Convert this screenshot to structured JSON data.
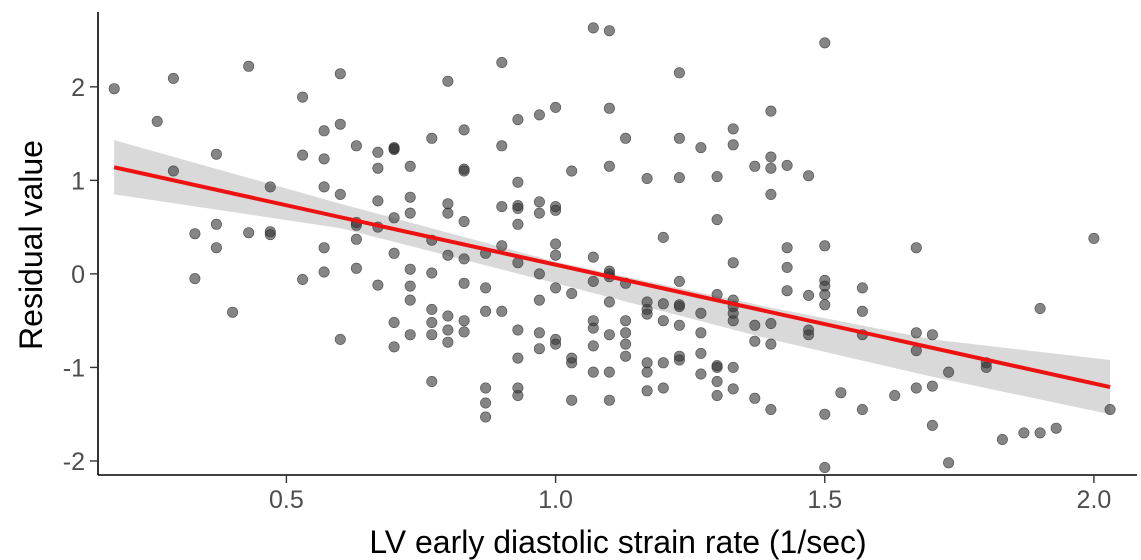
{
  "chart_data": {
    "type": "scatter",
    "title": "",
    "xlabel": "LV early diastolic strain rate (1/sec)",
    "ylabel": "Residual value",
    "xlim": [
      0.15,
      2.08
    ],
    "ylim": [
      -2.15,
      2.8
    ],
    "x_ticks": [
      0.5,
      1.0,
      1.5,
      2.0
    ],
    "x_tick_labels": [
      "0.5",
      "1.0",
      "1.5",
      "2.0"
    ],
    "y_ticks": [
      -2,
      -1,
      0,
      1,
      2
    ],
    "y_tick_labels": [
      "-2",
      "-1",
      "0",
      "1",
      "2"
    ],
    "grid": false,
    "legend": "none",
    "point_color": "#333333",
    "fit_color": "#ee1111",
    "band_color": "#bfbfbf",
    "points": [
      [
        0.18,
        1.98
      ],
      [
        0.26,
        1.63
      ],
      [
        0.29,
        2.09
      ],
      [
        0.29,
        1.1
      ],
      [
        0.33,
        0.43
      ],
      [
        0.33,
        -0.05
      ],
      [
        0.37,
        0.28
      ],
      [
        0.37,
        0.53
      ],
      [
        0.37,
        1.28
      ],
      [
        0.4,
        -0.41
      ],
      [
        0.43,
        2.22
      ],
      [
        0.43,
        0.44
      ],
      [
        0.47,
        0.45
      ],
      [
        0.47,
        0.93
      ],
      [
        0.47,
        0.42
      ],
      [
        0.53,
        1.89
      ],
      [
        0.53,
        1.27
      ],
      [
        0.53,
        -0.06
      ],
      [
        0.57,
        1.23
      ],
      [
        0.57,
        1.53
      ],
      [
        0.57,
        0.93
      ],
      [
        0.57,
        0.28
      ],
      [
        0.57,
        0.02
      ],
      [
        0.6,
        2.14
      ],
      [
        0.6,
        1.6
      ],
      [
        0.6,
        0.85
      ],
      [
        0.6,
        -0.7
      ],
      [
        0.63,
        1.37
      ],
      [
        0.63,
        0.52
      ],
      [
        0.63,
        0.55
      ],
      [
        0.63,
        0.37
      ],
      [
        0.63,
        0.06
      ],
      [
        0.67,
        1.3
      ],
      [
        0.67,
        1.13
      ],
      [
        0.67,
        0.78
      ],
      [
        0.67,
        0.5
      ],
      [
        0.67,
        -0.12
      ],
      [
        0.7,
        1.34
      ],
      [
        0.7,
        1.33
      ],
      [
        0.7,
        1.35
      ],
      [
        0.7,
        0.6
      ],
      [
        0.7,
        0.22
      ],
      [
        0.7,
        -0.52
      ],
      [
        0.7,
        -0.78
      ],
      [
        0.73,
        1.15
      ],
      [
        0.73,
        0.82
      ],
      [
        0.73,
        0.65
      ],
      [
        0.73,
        0.05
      ],
      [
        0.73,
        -0.13
      ],
      [
        0.73,
        -0.28
      ],
      [
        0.73,
        -0.65
      ],
      [
        0.77,
        1.45
      ],
      [
        0.77,
        0.36
      ],
      [
        0.77,
        0.01
      ],
      [
        0.77,
        -0.38
      ],
      [
        0.77,
        -0.52
      ],
      [
        0.77,
        -0.65
      ],
      [
        0.77,
        -1.15
      ],
      [
        0.8,
        2.06
      ],
      [
        0.8,
        0.75
      ],
      [
        0.8,
        0.65
      ],
      [
        0.8,
        0.2
      ],
      [
        0.8,
        -0.45
      ],
      [
        0.8,
        -0.6
      ],
      [
        0.8,
        -0.73
      ],
      [
        0.83,
        1.54
      ],
      [
        0.83,
        1.1
      ],
      [
        0.83,
        1.12
      ],
      [
        0.83,
        0.56
      ],
      [
        0.83,
        0.16
      ],
      [
        0.83,
        -0.1
      ],
      [
        0.83,
        -0.5
      ],
      [
        0.83,
        -0.62
      ],
      [
        0.87,
        0.22
      ],
      [
        0.87,
        -0.15
      ],
      [
        0.87,
        -0.4
      ],
      [
        0.87,
        -1.22
      ],
      [
        0.87,
        -1.38
      ],
      [
        0.87,
        -1.53
      ],
      [
        0.9,
        2.26
      ],
      [
        0.9,
        1.37
      ],
      [
        0.9,
        0.72
      ],
      [
        0.9,
        0.3
      ],
      [
        0.9,
        -0.4
      ],
      [
        0.93,
        1.65
      ],
      [
        0.93,
        0.98
      ],
      [
        0.93,
        0.73
      ],
      [
        0.93,
        0.7
      ],
      [
        0.93,
        0.53
      ],
      [
        0.93,
        0.12
      ],
      [
        0.93,
        -0.6
      ],
      [
        0.93,
        -0.9
      ],
      [
        0.93,
        -1.22
      ],
      [
        0.93,
        -1.3
      ],
      [
        0.97,
        1.7
      ],
      [
        0.97,
        0.77
      ],
      [
        0.97,
        0.65
      ],
      [
        0.97,
        0.0
      ],
      [
        0.97,
        -0.28
      ],
      [
        0.97,
        -0.63
      ],
      [
        0.97,
        -0.8
      ],
      [
        1.0,
        1.78
      ],
      [
        1.0,
        0.72
      ],
      [
        1.0,
        0.68
      ],
      [
        1.0,
        0.32
      ],
      [
        1.0,
        0.2
      ],
      [
        1.0,
        -0.15
      ],
      [
        1.0,
        -0.7
      ],
      [
        1.0,
        -0.75
      ],
      [
        1.03,
        1.1
      ],
      [
        1.03,
        -0.21
      ],
      [
        1.03,
        -0.9
      ],
      [
        1.03,
        -0.95
      ],
      [
        1.03,
        -1.35
      ],
      [
        1.07,
        2.63
      ],
      [
        1.07,
        0.18
      ],
      [
        1.07,
        -0.08
      ],
      [
        1.07,
        -0.5
      ],
      [
        1.07,
        -0.58
      ],
      [
        1.07,
        -0.77
      ],
      [
        1.07,
        -1.05
      ],
      [
        1.1,
        2.6
      ],
      [
        1.1,
        1.77
      ],
      [
        1.1,
        1.15
      ],
      [
        1.1,
        0.03
      ],
      [
        1.1,
        0.0
      ],
      [
        1.1,
        -0.03
      ],
      [
        1.1,
        -0.3
      ],
      [
        1.1,
        -0.65
      ],
      [
        1.1,
        -1.05
      ],
      [
        1.1,
        -1.35
      ],
      [
        1.13,
        1.45
      ],
      [
        1.13,
        -0.1
      ],
      [
        1.13,
        -0.5
      ],
      [
        1.13,
        -0.63
      ],
      [
        1.13,
        -0.75
      ],
      [
        1.13,
        -0.88
      ],
      [
        1.17,
        1.02
      ],
      [
        1.17,
        -0.3
      ],
      [
        1.17,
        -0.38
      ],
      [
        1.17,
        -0.43
      ],
      [
        1.17,
        -0.95
      ],
      [
        1.17,
        -1.05
      ],
      [
        1.17,
        -1.25
      ],
      [
        1.2,
        0.39
      ],
      [
        1.2,
        -0.32
      ],
      [
        1.2,
        -0.5
      ],
      [
        1.2,
        -0.95
      ],
      [
        1.2,
        -1.22
      ],
      [
        1.23,
        2.15
      ],
      [
        1.23,
        1.45
      ],
      [
        1.23,
        1.03
      ],
      [
        1.23,
        -0.08
      ],
      [
        1.23,
        -0.33
      ],
      [
        1.23,
        -0.35
      ],
      [
        1.23,
        -0.55
      ],
      [
        1.23,
        -0.88
      ],
      [
        1.23,
        -0.92
      ],
      [
        1.27,
        1.35
      ],
      [
        1.27,
        -0.42
      ],
      [
        1.27,
        -0.63
      ],
      [
        1.27,
        -0.85
      ],
      [
        1.27,
        -1.07
      ],
      [
        1.3,
        1.04
      ],
      [
        1.3,
        0.58
      ],
      [
        1.3,
        -0.22
      ],
      [
        1.3,
        -0.98
      ],
      [
        1.3,
        -1.0
      ],
      [
        1.3,
        -1.15
      ],
      [
        1.3,
        -1.3
      ],
      [
        1.33,
        1.55
      ],
      [
        1.33,
        1.38
      ],
      [
        1.33,
        0.12
      ],
      [
        1.33,
        -0.28
      ],
      [
        1.33,
        -0.35
      ],
      [
        1.33,
        -0.42
      ],
      [
        1.33,
        -0.5
      ],
      [
        1.33,
        -1.0
      ],
      [
        1.33,
        -1.23
      ],
      [
        1.37,
        1.15
      ],
      [
        1.37,
        -0.55
      ],
      [
        1.37,
        -0.72
      ],
      [
        1.37,
        -1.33
      ],
      [
        1.4,
        1.74
      ],
      [
        1.4,
        1.25
      ],
      [
        1.4,
        1.13
      ],
      [
        1.4,
        0.85
      ],
      [
        1.4,
        -0.53
      ],
      [
        1.4,
        -0.75
      ],
      [
        1.4,
        -1.45
      ],
      [
        1.43,
        1.16
      ],
      [
        1.43,
        0.28
      ],
      [
        1.43,
        0.07
      ],
      [
        1.43,
        -0.18
      ],
      [
        1.47,
        1.05
      ],
      [
        1.47,
        -0.23
      ],
      [
        1.47,
        -0.6
      ],
      [
        1.47,
        -0.65
      ],
      [
        1.5,
        2.47
      ],
      [
        1.5,
        0.3
      ],
      [
        1.5,
        -0.07
      ],
      [
        1.5,
        -0.13
      ],
      [
        1.5,
        -0.22
      ],
      [
        1.5,
        -0.33
      ],
      [
        1.5,
        -1.5
      ],
      [
        1.5,
        -2.07
      ],
      [
        1.53,
        -1.27
      ],
      [
        1.57,
        -0.15
      ],
      [
        1.57,
        -0.4
      ],
      [
        1.57,
        -0.65
      ],
      [
        1.57,
        -1.45
      ],
      [
        1.63,
        -1.3
      ],
      [
        1.67,
        0.28
      ],
      [
        1.67,
        -0.63
      ],
      [
        1.67,
        -0.82
      ],
      [
        1.67,
        -1.22
      ],
      [
        1.7,
        -0.65
      ],
      [
        1.7,
        -1.2
      ],
      [
        1.7,
        -1.62
      ],
      [
        1.73,
        -1.05
      ],
      [
        1.73,
        -2.02
      ],
      [
        1.8,
        -0.95
      ],
      [
        1.8,
        -1.0
      ],
      [
        1.83,
        -1.77
      ],
      [
        1.87,
        -1.7
      ],
      [
        1.9,
        -0.37
      ],
      [
        1.9,
        -1.7
      ],
      [
        1.93,
        -1.65
      ],
      [
        2.0,
        0.38
      ],
      [
        2.03,
        -1.45
      ]
    ],
    "fit_line": {
      "x": [
        0.18,
        2.03
      ],
      "y": [
        1.14,
        -1.21
      ]
    },
    "confidence_band": {
      "x": [
        0.18,
        0.6,
        1.0,
        1.4,
        1.7,
        2.03
      ],
      "upper": [
        1.43,
        0.75,
        0.13,
        -0.36,
        -0.7,
        -0.92
      ],
      "lower": [
        0.85,
        0.49,
        -0.1,
        -0.7,
        -1.1,
        -1.5
      ]
    }
  }
}
